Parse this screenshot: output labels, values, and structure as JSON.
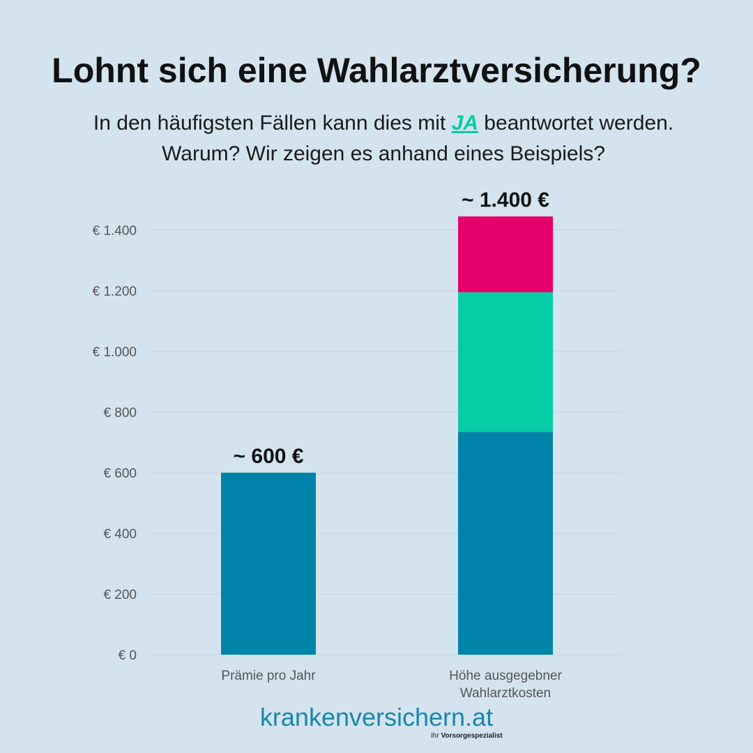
{
  "header": {
    "title": "Lohnt sich eine Wahlarztversicherung?",
    "subtitle_line1_before": "In den häufigsten Fällen kann dies mit ",
    "subtitle_highlight": "JA",
    "subtitle_line1_after": " beantwortet werden.",
    "subtitle_line2": "Warum? Wir zeigen es anhand eines Beispiels?"
  },
  "colors": {
    "background": "#d3e4ef",
    "teal_blue": "#0083a8",
    "mint": "#05cca4",
    "magenta": "#e5006b",
    "highlight": "#05cca4",
    "brand": "#1a86ac"
  },
  "chart_data": {
    "type": "bar",
    "stacked": true,
    "categories": [
      "Prämie pro Jahr",
      "Höhe ausgegebner Wahlarztkosten"
    ],
    "series": [
      {
        "color": "#0083a8",
        "values": [
          600,
          735
        ]
      },
      {
        "color": "#05cca4",
        "values": [
          0,
          460
        ]
      },
      {
        "color": "#e5006b",
        "values": [
          0,
          250
        ]
      }
    ],
    "data_labels": [
      "~ 600 €",
      "~ 1.400 €"
    ],
    "ylim": [
      0,
      1400
    ],
    "yticks": [
      0,
      200,
      400,
      600,
      800,
      1000,
      1200,
      1400
    ],
    "ytick_labels": [
      "€ 0",
      "€ 200",
      "€ 400",
      "€ 600",
      "€ 800",
      "€ 1.000",
      "€ 1.200",
      "€ 1.400"
    ],
    "grid": true,
    "legend": false,
    "xlabel": "",
    "ylabel": ""
  },
  "footer": {
    "brand": "krankenversichern.at",
    "tagline_prefix": "Ihr ",
    "tagline_bold": "Vorsorgespezialist"
  }
}
